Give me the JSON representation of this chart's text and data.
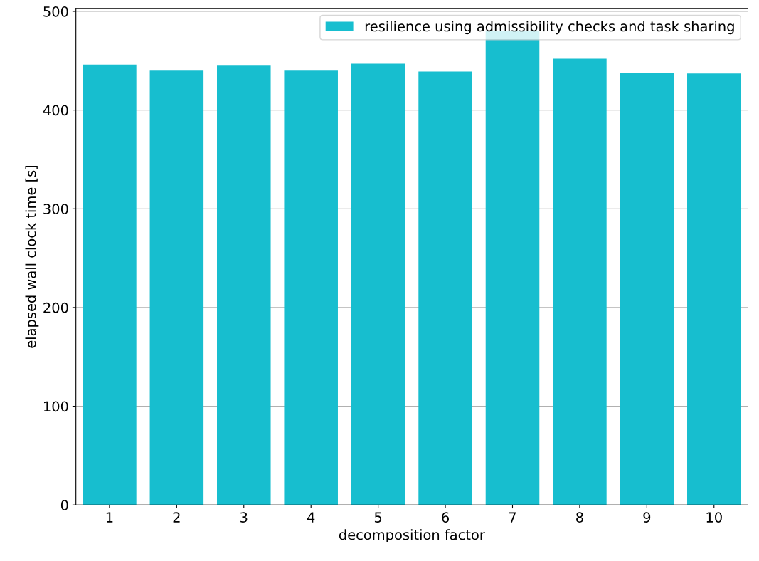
{
  "chart_data": {
    "type": "bar",
    "xlabel": "decomposition factor",
    "ylabel": "elapsed wall clock time [s]",
    "categories": [
      "1",
      "2",
      "3",
      "4",
      "5",
      "6",
      "7",
      "8",
      "9",
      "10"
    ],
    "series": [
      {
        "name": "resilience using admissibility checks and task sharing",
        "color": "#17becf",
        "values": [
          446,
          440,
          445,
          440,
          447,
          439,
          480,
          452,
          438,
          437
        ]
      }
    ],
    "ylim": [
      0,
      503
    ],
    "yticks": [
      0,
      100,
      200,
      300,
      400,
      500
    ],
    "grid": "y",
    "legend": "top right"
  }
}
